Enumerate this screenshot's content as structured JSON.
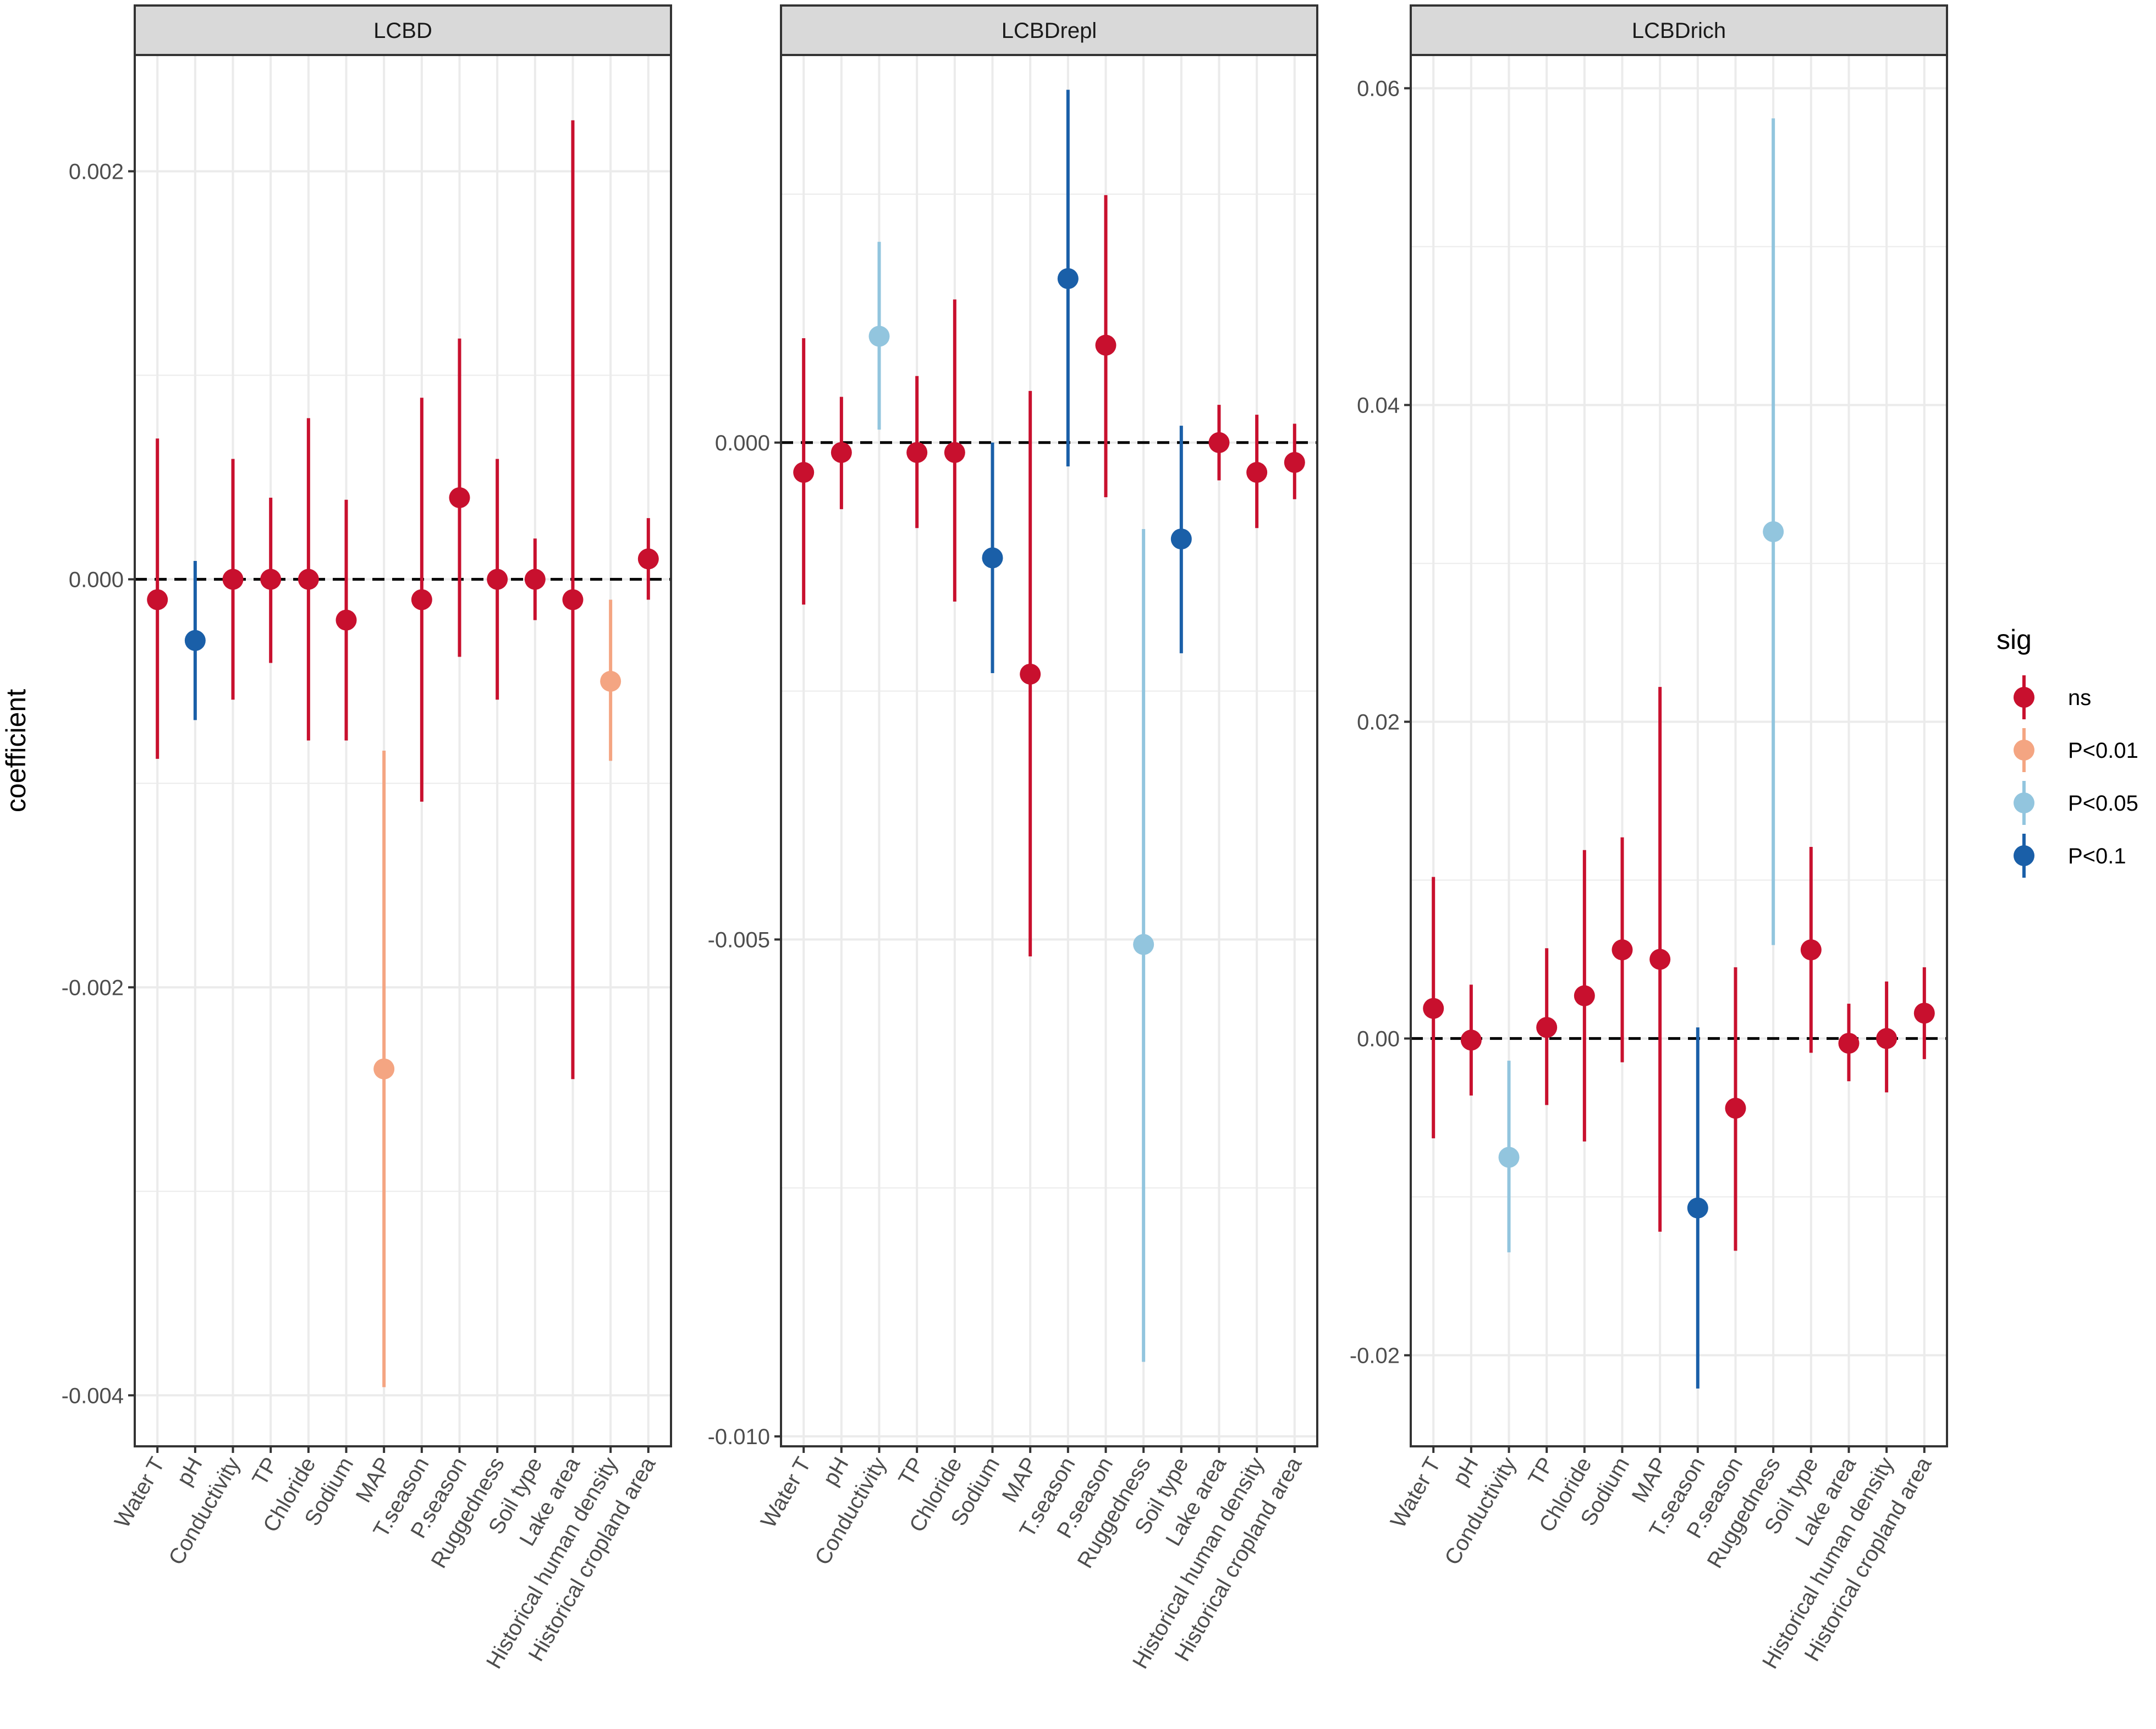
{
  "chart_data": {
    "type": "pointrange",
    "ylabel": "coefficient",
    "categories": [
      "Water T",
      "pH",
      "Conductivity",
      "TP",
      "Chloride",
      "Sodium",
      "MAP",
      "T.season",
      "P.season",
      "Ruggedness",
      "Soil type",
      "Lake area",
      "Historical human density",
      "Historical cropland area"
    ],
    "legend": {
      "title": "sig",
      "position": "right",
      "entries": [
        {
          "label": "ns",
          "color": "#c8102e"
        },
        {
          "label": "P<0.01",
          "color": "#f4a582"
        },
        {
          "label": "P<0.05",
          "color": "#92c5de"
        },
        {
          "label": "P<0.1",
          "color": "#1a5fa8"
        }
      ]
    },
    "panels": [
      {
        "title": "LCBD",
        "ylim": [
          -0.00425,
          0.00257
        ],
        "yticks": [
          -0.004,
          -0.002,
          0.0,
          0.002
        ],
        "yticklabels": [
          "-0.004",
          "-0.002",
          "0.000",
          "0.002"
        ],
        "estimate": [
          -0.0001,
          -0.0003,
          0.0,
          0.0,
          0.0,
          -0.0002,
          -0.0024,
          -0.0001,
          0.0004,
          0.0,
          0.0,
          -0.0001,
          -0.0005,
          0.0001
        ],
        "lower": [
          -0.00088,
          -0.00069,
          -0.00059,
          -0.00041,
          -0.00079,
          -0.00079,
          -0.00396,
          -0.00109,
          -0.00038,
          -0.00059,
          -0.0002,
          -0.00245,
          -0.00089,
          -0.0001
        ],
        "upper": [
          0.00069,
          9e-05,
          0.00059,
          0.0004,
          0.00079,
          0.00039,
          -0.00084,
          0.00089,
          0.00118,
          0.00059,
          0.0002,
          0.00225,
          -0.0001,
          0.0003
        ],
        "sig": [
          "ns",
          "P<0.1",
          "ns",
          "ns",
          "ns",
          "ns",
          "P<0.01",
          "ns",
          "ns",
          "ns",
          "ns",
          "ns",
          "P<0.01",
          "ns"
        ]
      },
      {
        "title": "LCBDrepl",
        "ylim": [
          -0.0101,
          0.0039
        ],
        "yticks": [
          -0.01,
          -0.005,
          0.0
        ],
        "yticklabels": [
          "-0.010",
          "-0.005",
          "0.000"
        ],
        "estimate": [
          -0.0003,
          -0.0001,
          0.00107,
          -0.0001,
          -0.0001,
          -0.00116,
          -0.00233,
          0.00165,
          0.00098,
          -0.00505,
          -0.00097,
          0.0,
          -0.0003,
          -0.0002
        ],
        "lower": [
          -0.00163,
          -0.00067,
          0.00013,
          -0.00086,
          -0.0016,
          -0.00232,
          -0.00517,
          -0.00024,
          -0.00055,
          -0.00925,
          -0.00212,
          -0.00038,
          -0.00086,
          -0.00057
        ],
        "upper": [
          0.00105,
          0.00046,
          0.00202,
          0.00067,
          0.00144,
          0.0,
          0.00052,
          0.00355,
          0.00249,
          -0.00087,
          0.00017,
          0.00038,
          0.00028,
          0.00019
        ],
        "sig": [
          "ns",
          "ns",
          "P<0.05",
          "ns",
          "ns",
          "P<0.1",
          "ns",
          "P<0.1",
          "ns",
          "P<0.05",
          "P<0.1",
          "ns",
          "ns",
          "ns"
        ]
      },
      {
        "title": "LCBDrich",
        "ylim": [
          -0.02575,
          0.0621
        ],
        "yticks": [
          -0.02,
          0.0,
          0.02,
          0.04,
          0.06
        ],
        "yticklabels": [
          "-0.02",
          "0.00",
          "0.02",
          "0.04",
          "0.06"
        ],
        "estimate": [
          0.0019,
          -0.0001,
          -0.0075,
          0.0007,
          0.0027,
          0.0056,
          0.005,
          -0.0107,
          -0.0044,
          0.032,
          0.0056,
          -0.0003,
          0.0,
          0.0016
        ],
        "lower": [
          -0.0063,
          -0.0036,
          -0.0135,
          -0.0042,
          -0.0065,
          -0.0015,
          -0.0122,
          -0.0221,
          -0.0134,
          0.0059,
          -0.0009,
          -0.0027,
          -0.0034,
          -0.0013
        ],
        "upper": [
          0.0102,
          0.0034,
          -0.0014,
          0.0057,
          0.0119,
          0.0127,
          0.0222,
          0.0007,
          0.0045,
          0.0581,
          0.0121,
          0.0022,
          0.0036,
          0.0045
        ],
        "sig": [
          "ns",
          "ns",
          "P<0.05",
          "ns",
          "ns",
          "ns",
          "ns",
          "P<0.1",
          "ns",
          "P<0.05",
          "ns",
          "ns",
          "ns",
          "ns"
        ]
      }
    ]
  }
}
